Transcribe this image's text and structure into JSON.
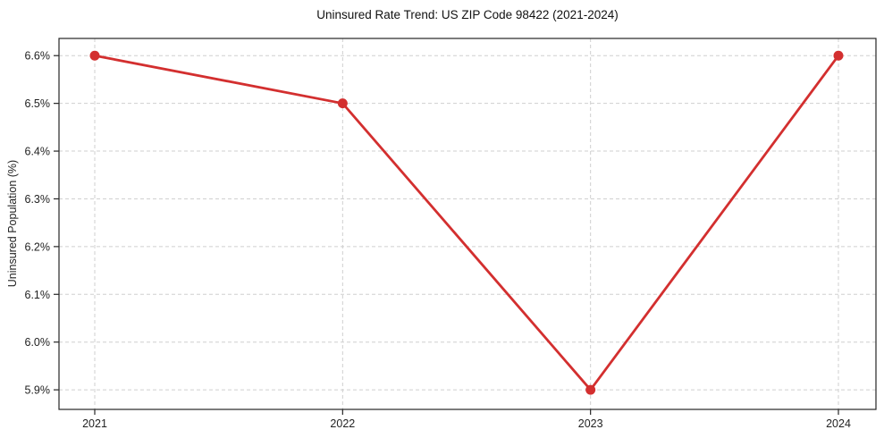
{
  "chart_data": {
    "type": "line",
    "title": "Uninsured Rate Trend: US ZIP Code 98422 (2021-2024)",
    "xlabel": "",
    "ylabel": "Uninsured Population (%)",
    "categories": [
      "2021",
      "2022",
      "2023",
      "2024"
    ],
    "values": [
      6.6,
      6.5,
      5.9,
      6.6
    ],
    "ytick_values": [
      5.9,
      6.0,
      6.1,
      6.2,
      6.3,
      6.4,
      6.5,
      6.6
    ],
    "ytick_labels": [
      "5.9%",
      "6.0%",
      "6.1%",
      "6.2%",
      "6.3%",
      "6.4%",
      "6.5%",
      "6.6%"
    ],
    "ylim": [
      5.859,
      6.636
    ],
    "grid": true,
    "legend": "none",
    "line_color": "#d32f2f",
    "marker_color": "#d32f2f",
    "grid_color": "#cfcfcf",
    "spine_color": "#262626",
    "text_color": "#222222"
  }
}
